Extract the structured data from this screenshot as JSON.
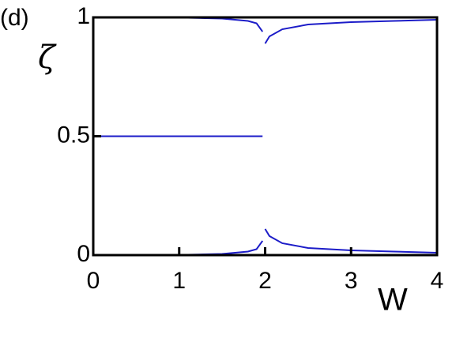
{
  "chart_data": {
    "type": "line",
    "panel_label": "(d)",
    "ylabel": "ζ",
    "xlabel": "W",
    "x": [
      0,
      0.5,
      1,
      1.5,
      1.8,
      1.9,
      1.97,
      2.0,
      2.05,
      2.2,
      2.5,
      3,
      3.5,
      4
    ],
    "series": [
      {
        "color": "#1c1cc8",
        "values": [
          1,
          1,
          1,
          1,
          1,
          1,
          1,
          1,
          1,
          1,
          1,
          1,
          1,
          1
        ]
      },
      {
        "color": "#1c1cc8",
        "values": [
          1,
          1,
          0.999,
          0.995,
          0.985,
          0.975,
          0.94,
          null,
          null,
          null,
          null,
          null,
          null,
          null
        ]
      },
      {
        "color": "#1c1cc8",
        "values": [
          null,
          null,
          null,
          null,
          null,
          null,
          null,
          0.89,
          0.92,
          0.95,
          0.97,
          0.98,
          0.985,
          0.99
        ]
      },
      {
        "color": "#1c1cc8",
        "values": [
          0.5,
          0.5,
          0.5,
          0.5,
          0.5,
          0.5,
          0.5,
          null,
          null,
          null,
          null,
          null,
          null,
          null
        ]
      },
      {
        "color": "#1c1cc8",
        "values": [
          0,
          0,
          0.001,
          0.005,
          0.015,
          0.025,
          0.06,
          null,
          null,
          null,
          null,
          null,
          null,
          null
        ]
      },
      {
        "color": "#1c1cc8",
        "values": [
          null,
          null,
          null,
          null,
          null,
          null,
          null,
          0.11,
          0.08,
          0.05,
          0.03,
          0.02,
          0.015,
          0.01
        ]
      },
      {
        "color": "#1c1cc8",
        "values": [
          0,
          0,
          0,
          0,
          0,
          0,
          0,
          0,
          0,
          0,
          0,
          0,
          0,
          0
        ]
      }
    ],
    "xlim": [
      0,
      4
    ],
    "ylim": [
      0,
      1
    ],
    "xticks": [
      0,
      1,
      2,
      3,
      4
    ],
    "yticks": [
      0,
      0.5,
      1
    ]
  }
}
